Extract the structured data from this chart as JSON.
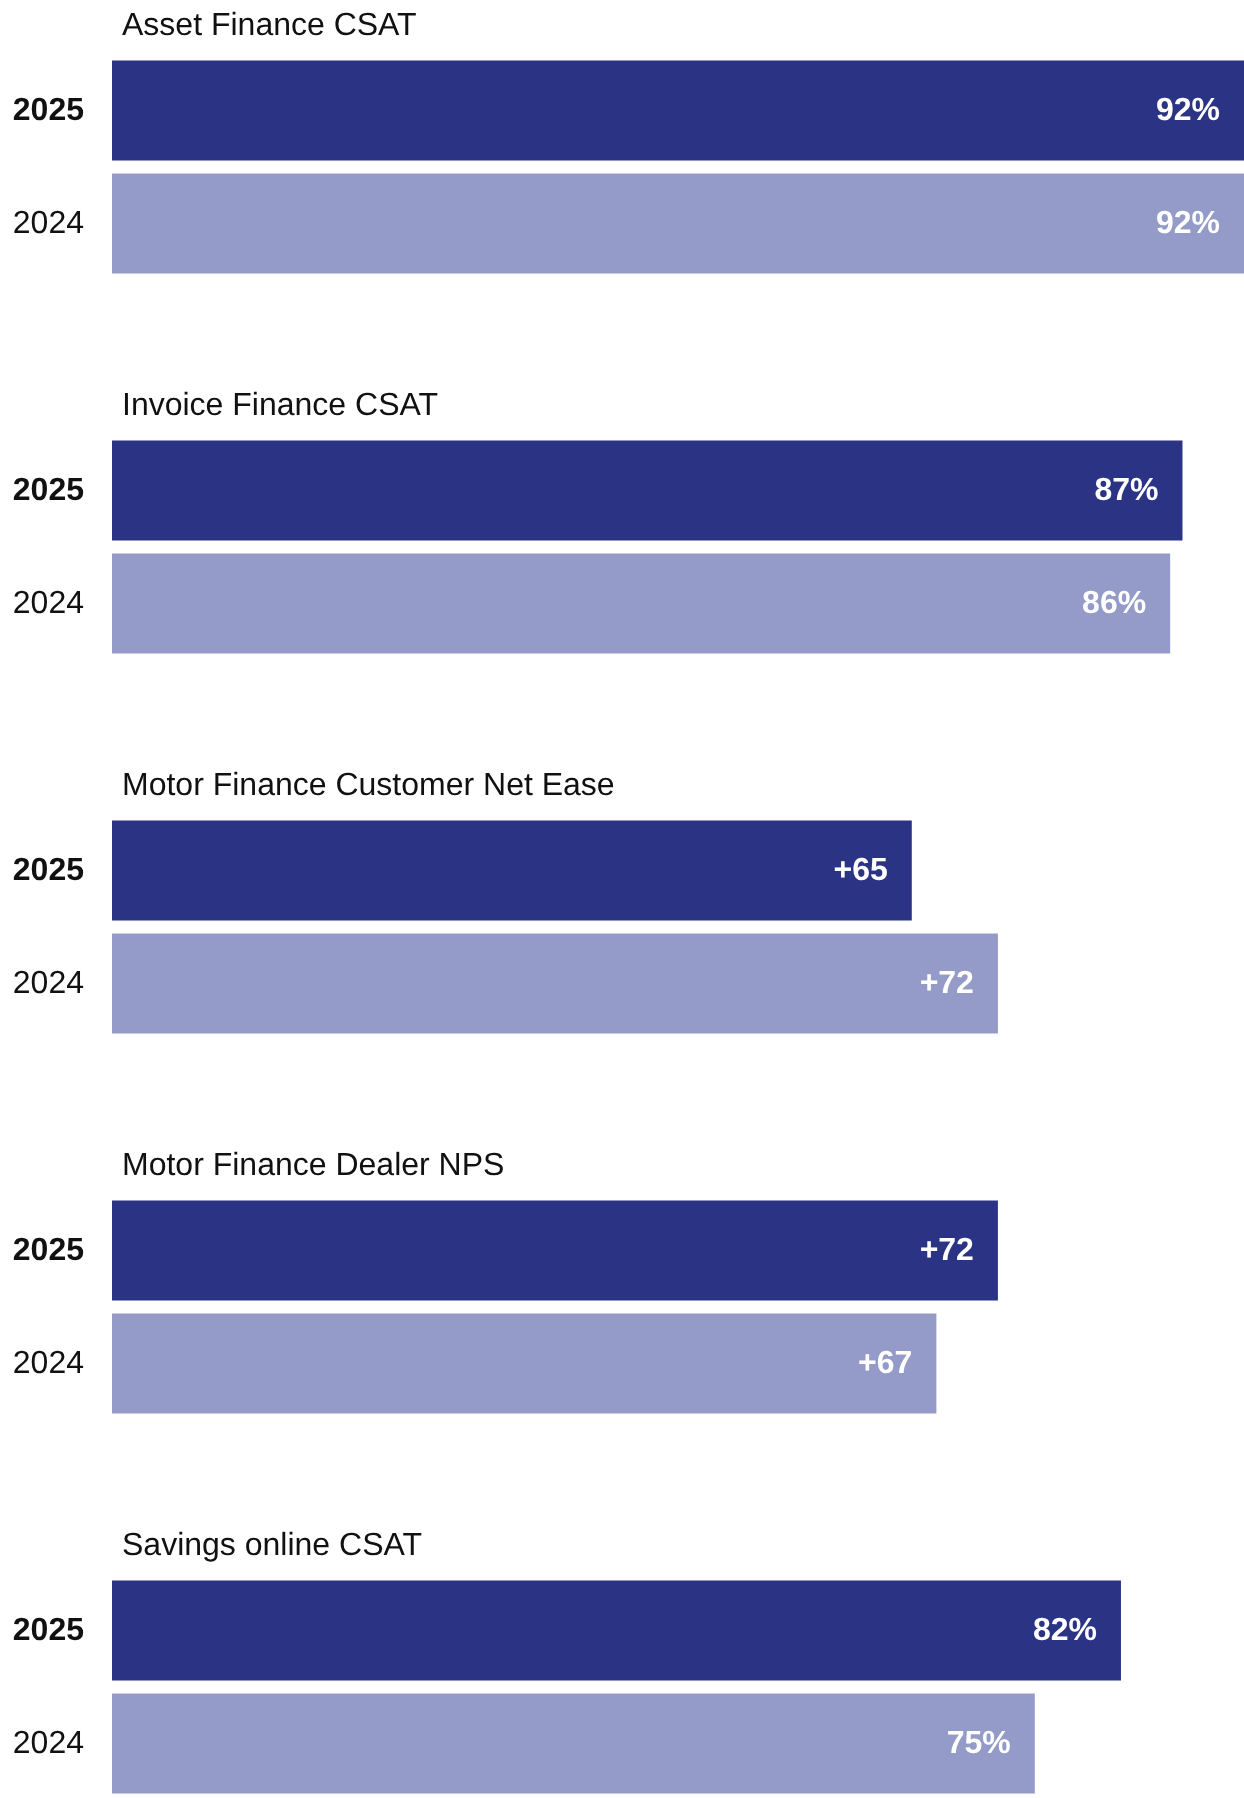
{
  "chart_data": [
    {
      "type": "bar",
      "orientation": "horizontal",
      "title": "Asset Finance CSAT",
      "categories": [
        "2025",
        "2024"
      ],
      "values": [
        92,
        92
      ],
      "value_labels": [
        "92%",
        "92%"
      ],
      "colors": [
        "#2b3384",
        "#959bc8"
      ]
    },
    {
      "type": "bar",
      "orientation": "horizontal",
      "title": "Invoice Finance CSAT",
      "categories": [
        "2025",
        "2024"
      ],
      "values": [
        87,
        86
      ],
      "value_labels": [
        "87%",
        "86%"
      ],
      "colors": [
        "#2b3384",
        "#959bc8"
      ]
    },
    {
      "type": "bar",
      "orientation": "horizontal",
      "title": "Motor Finance Customer Net Ease",
      "categories": [
        "2025",
        "2024"
      ],
      "values": [
        65,
        72
      ],
      "value_labels": [
        "+65",
        "+72"
      ],
      "colors": [
        "#2b3384",
        "#959bc8"
      ]
    },
    {
      "type": "bar",
      "orientation": "horizontal",
      "title": "Motor Finance Dealer NPS",
      "categories": [
        "2025",
        "2024"
      ],
      "values": [
        72,
        67
      ],
      "value_labels": [
        "+72",
        "+67"
      ],
      "colors": [
        "#2b3384",
        "#959bc8"
      ]
    },
    {
      "type": "bar",
      "orientation": "horizontal",
      "title": "Savings online CSAT",
      "categories": [
        "2025",
        "2024"
      ],
      "values": [
        82,
        75
      ],
      "value_labels": [
        "82%",
        "75%"
      ],
      "colors": [
        "#2b3384",
        "#959bc8"
      ]
    }
  ]
}
